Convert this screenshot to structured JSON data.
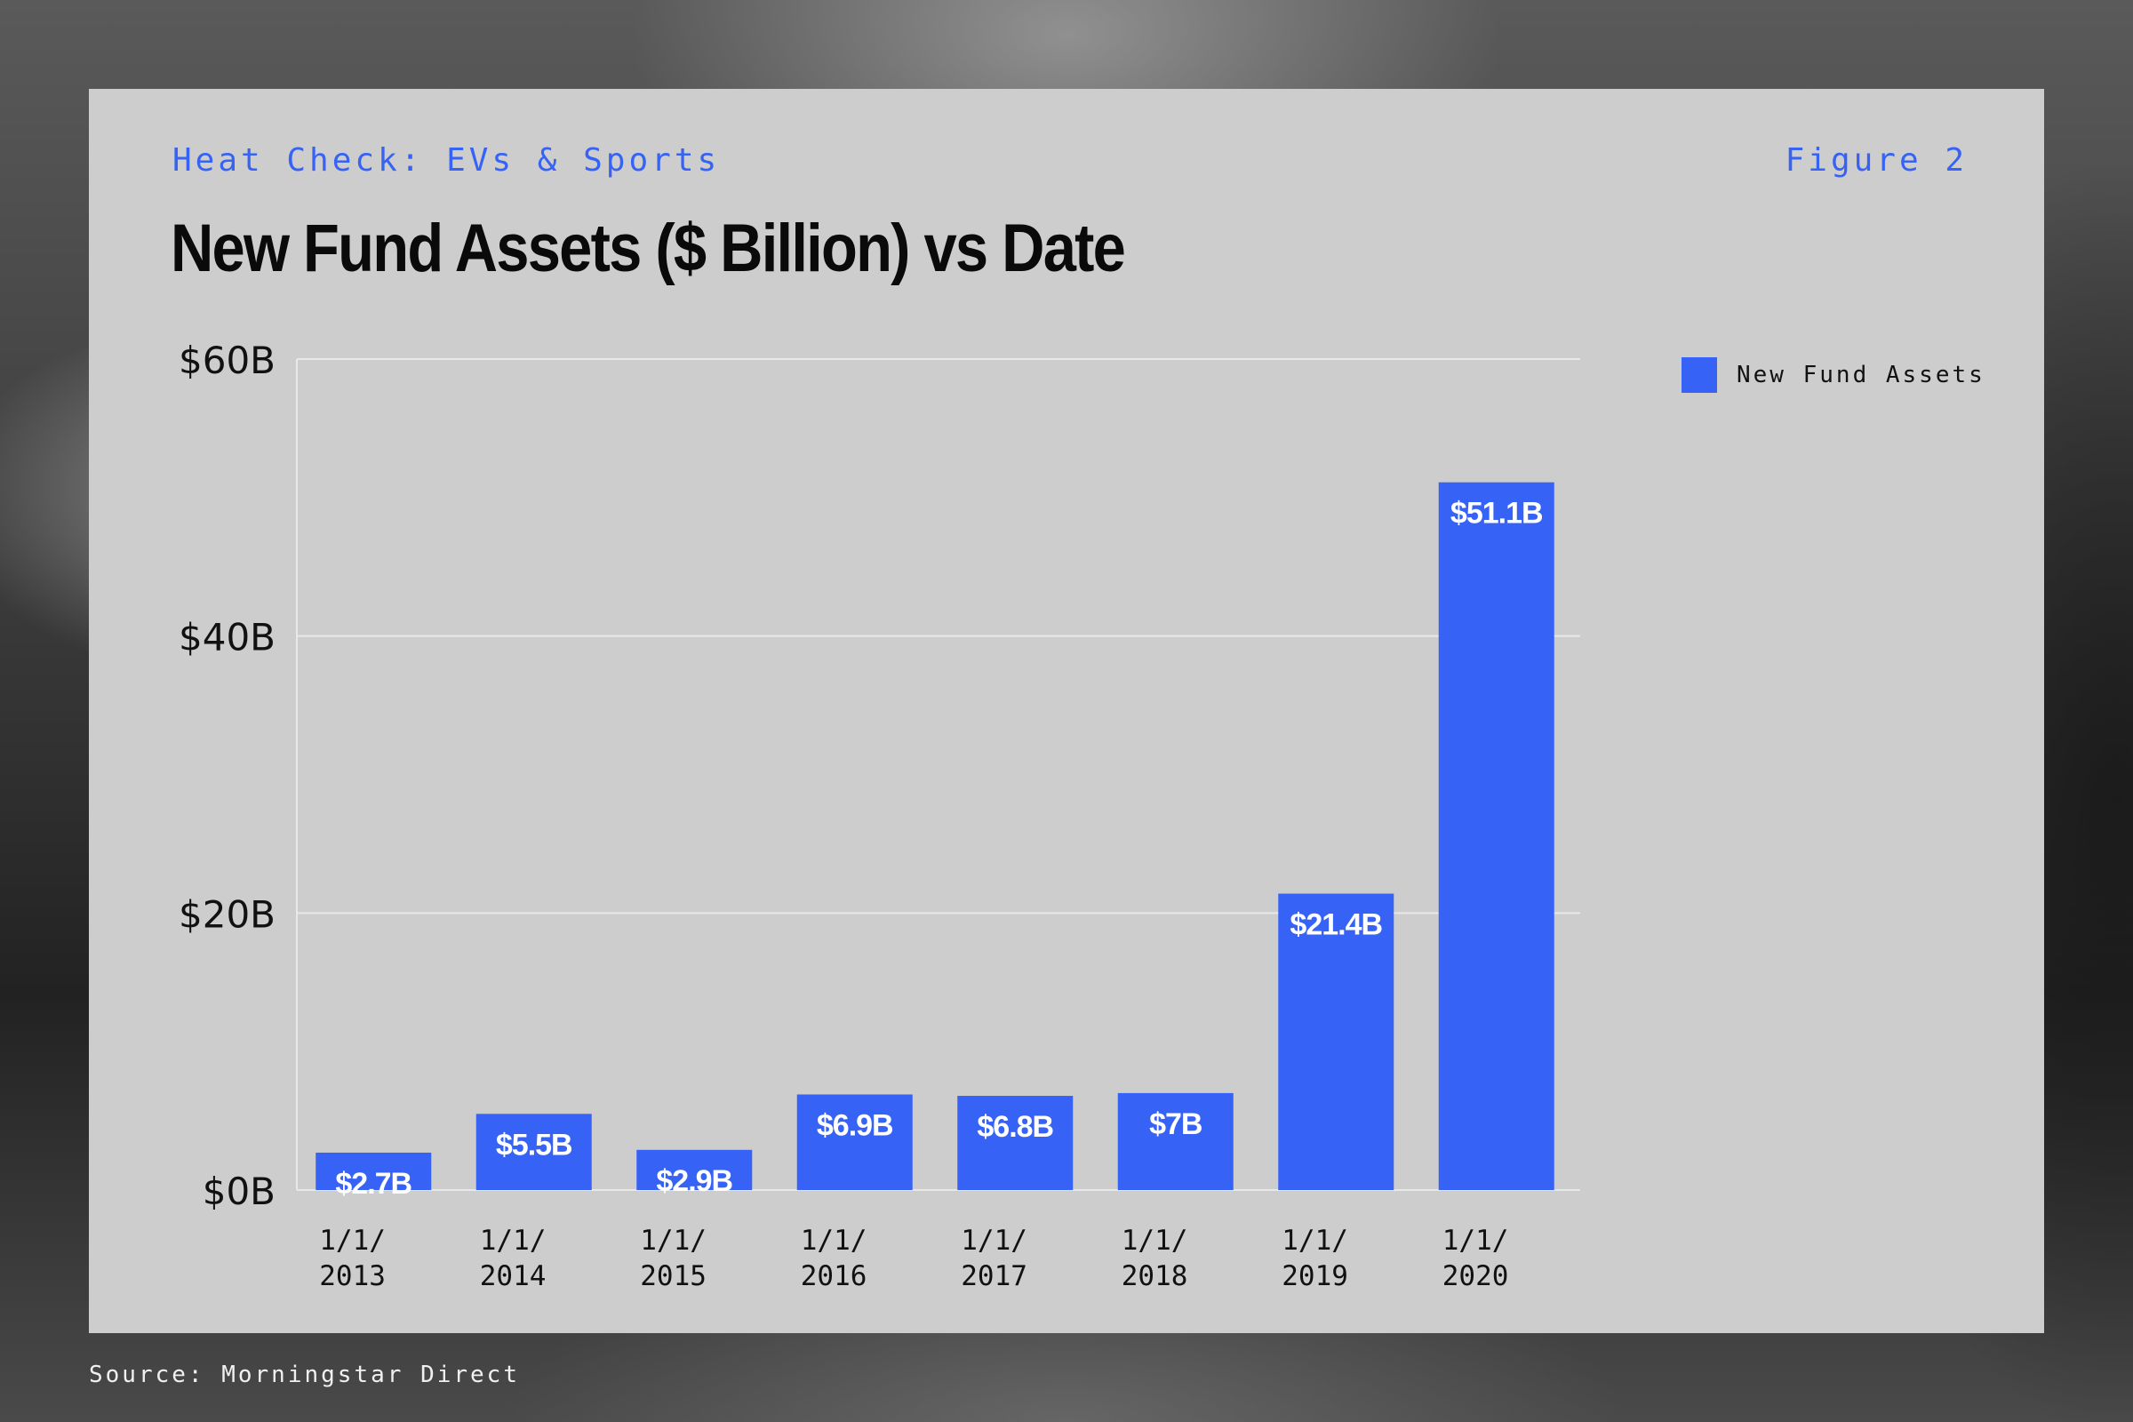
{
  "header": {
    "kicker": "Heat Check: EVs & Sports",
    "figure_label": "Figure 2"
  },
  "footer": {
    "source": "Source: Morningstar Direct"
  },
  "colors": {
    "bar": "#3663f5",
    "card": "#cdcdcd",
    "gridline": "#e8e8e8"
  },
  "chart_data": {
    "type": "bar",
    "title": "New Fund Assets ($ Billion) vs Date",
    "xlabel": "",
    "ylabel": "",
    "categories": [
      "1/1/2013",
      "1/1/2014",
      "1/1/2015",
      "1/1/2016",
      "1/1/2017",
      "1/1/2018",
      "1/1/2019",
      "1/1/2020"
    ],
    "category_labels": [
      [
        "1/1/",
        "2013"
      ],
      [
        "1/1/",
        "2014"
      ],
      [
        "1/1/",
        "2015"
      ],
      [
        "1/1/",
        "2016"
      ],
      [
        "1/1/",
        "2017"
      ],
      [
        "1/1/",
        "2018"
      ],
      [
        "1/1/",
        "2019"
      ],
      [
        "1/1/",
        "2020"
      ]
    ],
    "series": [
      {
        "name": "New Fund Assets",
        "values": [
          2.7,
          5.5,
          2.9,
          6.9,
          6.8,
          7,
          21.4,
          51.1
        ],
        "data_labels": [
          "$2.7B",
          "$5.5B",
          "$2.9B",
          "$6.9B",
          "$6.8B",
          "$7B",
          "$21.4B",
          "$51.1B"
        ]
      }
    ],
    "ylim": [
      0,
      60
    ],
    "yticks": [
      0,
      20,
      40,
      60
    ],
    "ytick_labels": [
      "$0B",
      "$20B",
      "$40B",
      "$60B"
    ],
    "grid": true,
    "legend_position": "top-right"
  }
}
